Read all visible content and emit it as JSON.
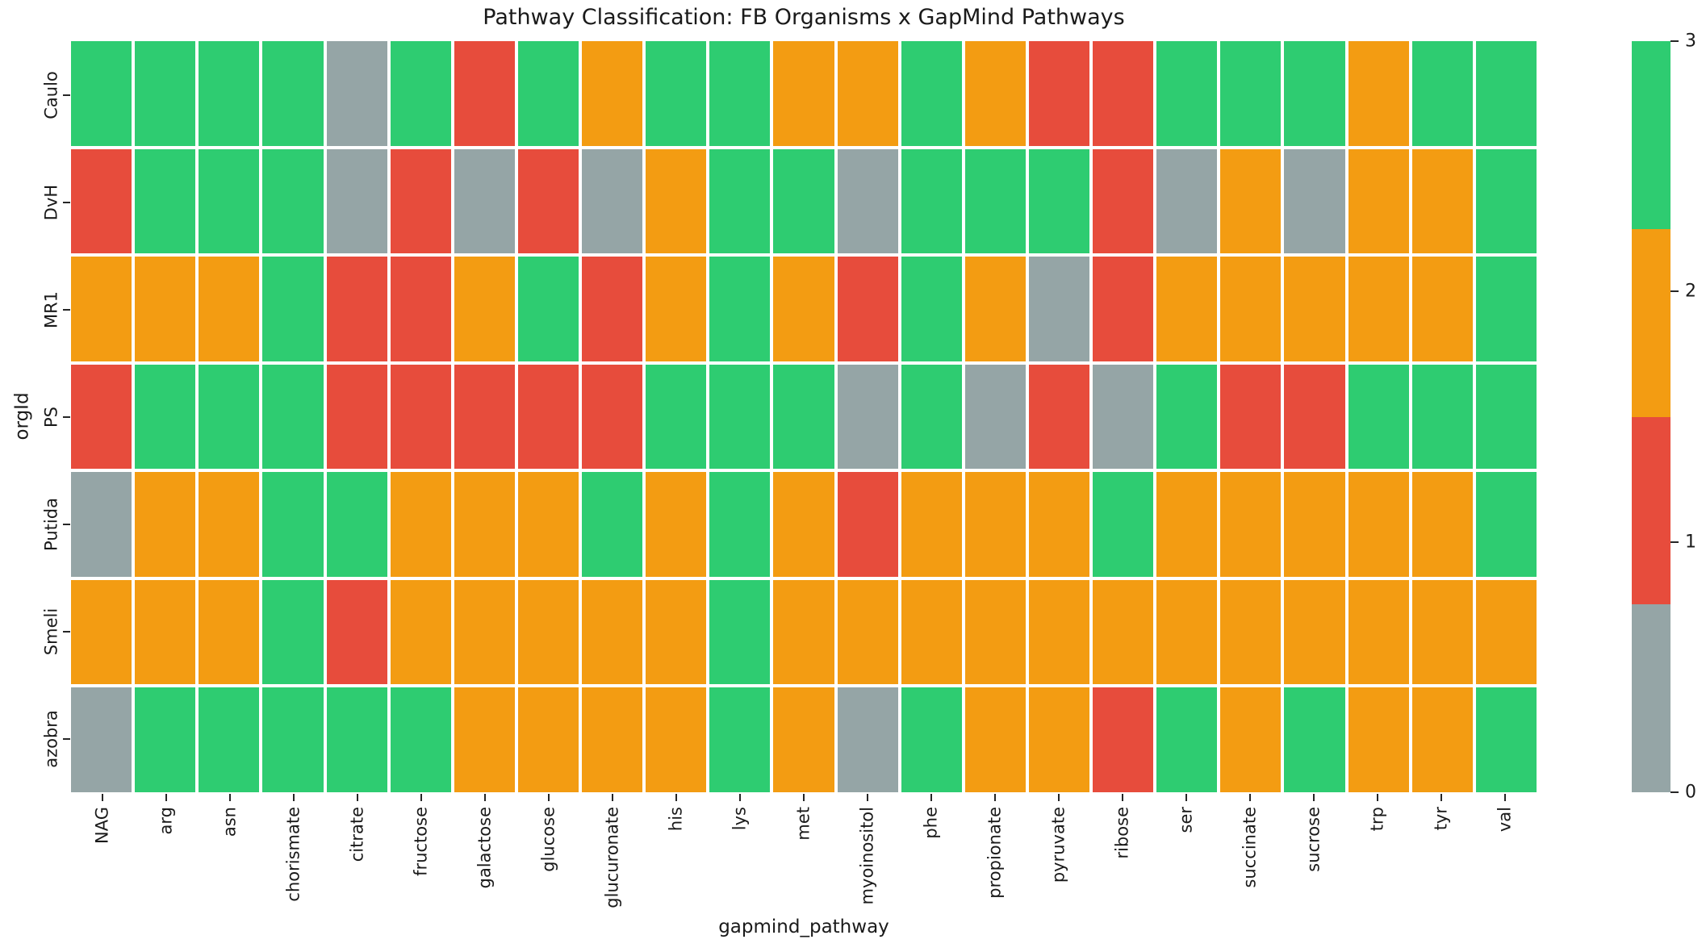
{
  "title": "Pathway Classification: FB Organisms x GapMind Pathways",
  "chart_data": {
    "type": "heatmap",
    "title": "Pathway Classification: FB Organisms x GapMind Pathways",
    "xlabel": "gapmind_pathway",
    "ylabel": "orgId",
    "columns": [
      "NAG",
      "arg",
      "asn",
      "chorismate",
      "citrate",
      "fructose",
      "galactose",
      "glucose",
      "glucuronate",
      "his",
      "lys",
      "met",
      "myoinositol",
      "phe",
      "propionate",
      "pyruvate",
      "ribose",
      "ser",
      "succinate",
      "sucrose",
      "trp",
      "tyr",
      "val"
    ],
    "rows": [
      "Caulo",
      "DvH",
      "MR1",
      "PS",
      "Putida",
      "Smeli",
      "azobra"
    ],
    "values": [
      [
        3,
        3,
        3,
        3,
        0,
        3,
        1,
        3,
        2,
        3,
        3,
        2,
        2,
        3,
        2,
        1,
        1,
        3,
        3,
        3,
        2,
        3,
        3
      ],
      [
        1,
        3,
        3,
        3,
        0,
        1,
        0,
        1,
        0,
        2,
        3,
        3,
        0,
        3,
        3,
        3,
        1,
        0,
        2,
        0,
        2,
        2,
        3
      ],
      [
        2,
        2,
        2,
        3,
        1,
        1,
        2,
        3,
        1,
        2,
        3,
        2,
        1,
        3,
        2,
        0,
        1,
        2,
        2,
        2,
        2,
        2,
        3
      ],
      [
        1,
        3,
        3,
        3,
        1,
        1,
        1,
        1,
        1,
        3,
        3,
        3,
        0,
        3,
        0,
        1,
        0,
        3,
        1,
        1,
        3,
        3,
        3
      ],
      [
        0,
        2,
        2,
        3,
        3,
        2,
        2,
        2,
        3,
        2,
        3,
        2,
        1,
        2,
        2,
        2,
        3,
        2,
        2,
        2,
        2,
        2,
        3
      ],
      [
        2,
        2,
        2,
        3,
        1,
        2,
        2,
        2,
        2,
        2,
        3,
        2,
        2,
        2,
        2,
        2,
        2,
        2,
        2,
        2,
        2,
        2,
        2
      ],
      [
        0,
        3,
        3,
        3,
        3,
        3,
        2,
        2,
        2,
        2,
        3,
        2,
        0,
        3,
        2,
        2,
        1,
        3,
        2,
        3,
        2,
        2,
        3
      ]
    ],
    "value_range": [
      0,
      3
    ],
    "colorbar_ticks": [
      "3",
      "2",
      "1",
      "0"
    ],
    "colorbar_segment_order_top_to_bottom": [
      3,
      2,
      1,
      0
    ],
    "palette": {
      "0": "#95a5a6",
      "1": "#e74c3c",
      "2": "#f39c12",
      "3": "#2ecc71"
    },
    "cell_border_color": "#ffffff",
    "grid": "off",
    "legend_position": "right"
  }
}
